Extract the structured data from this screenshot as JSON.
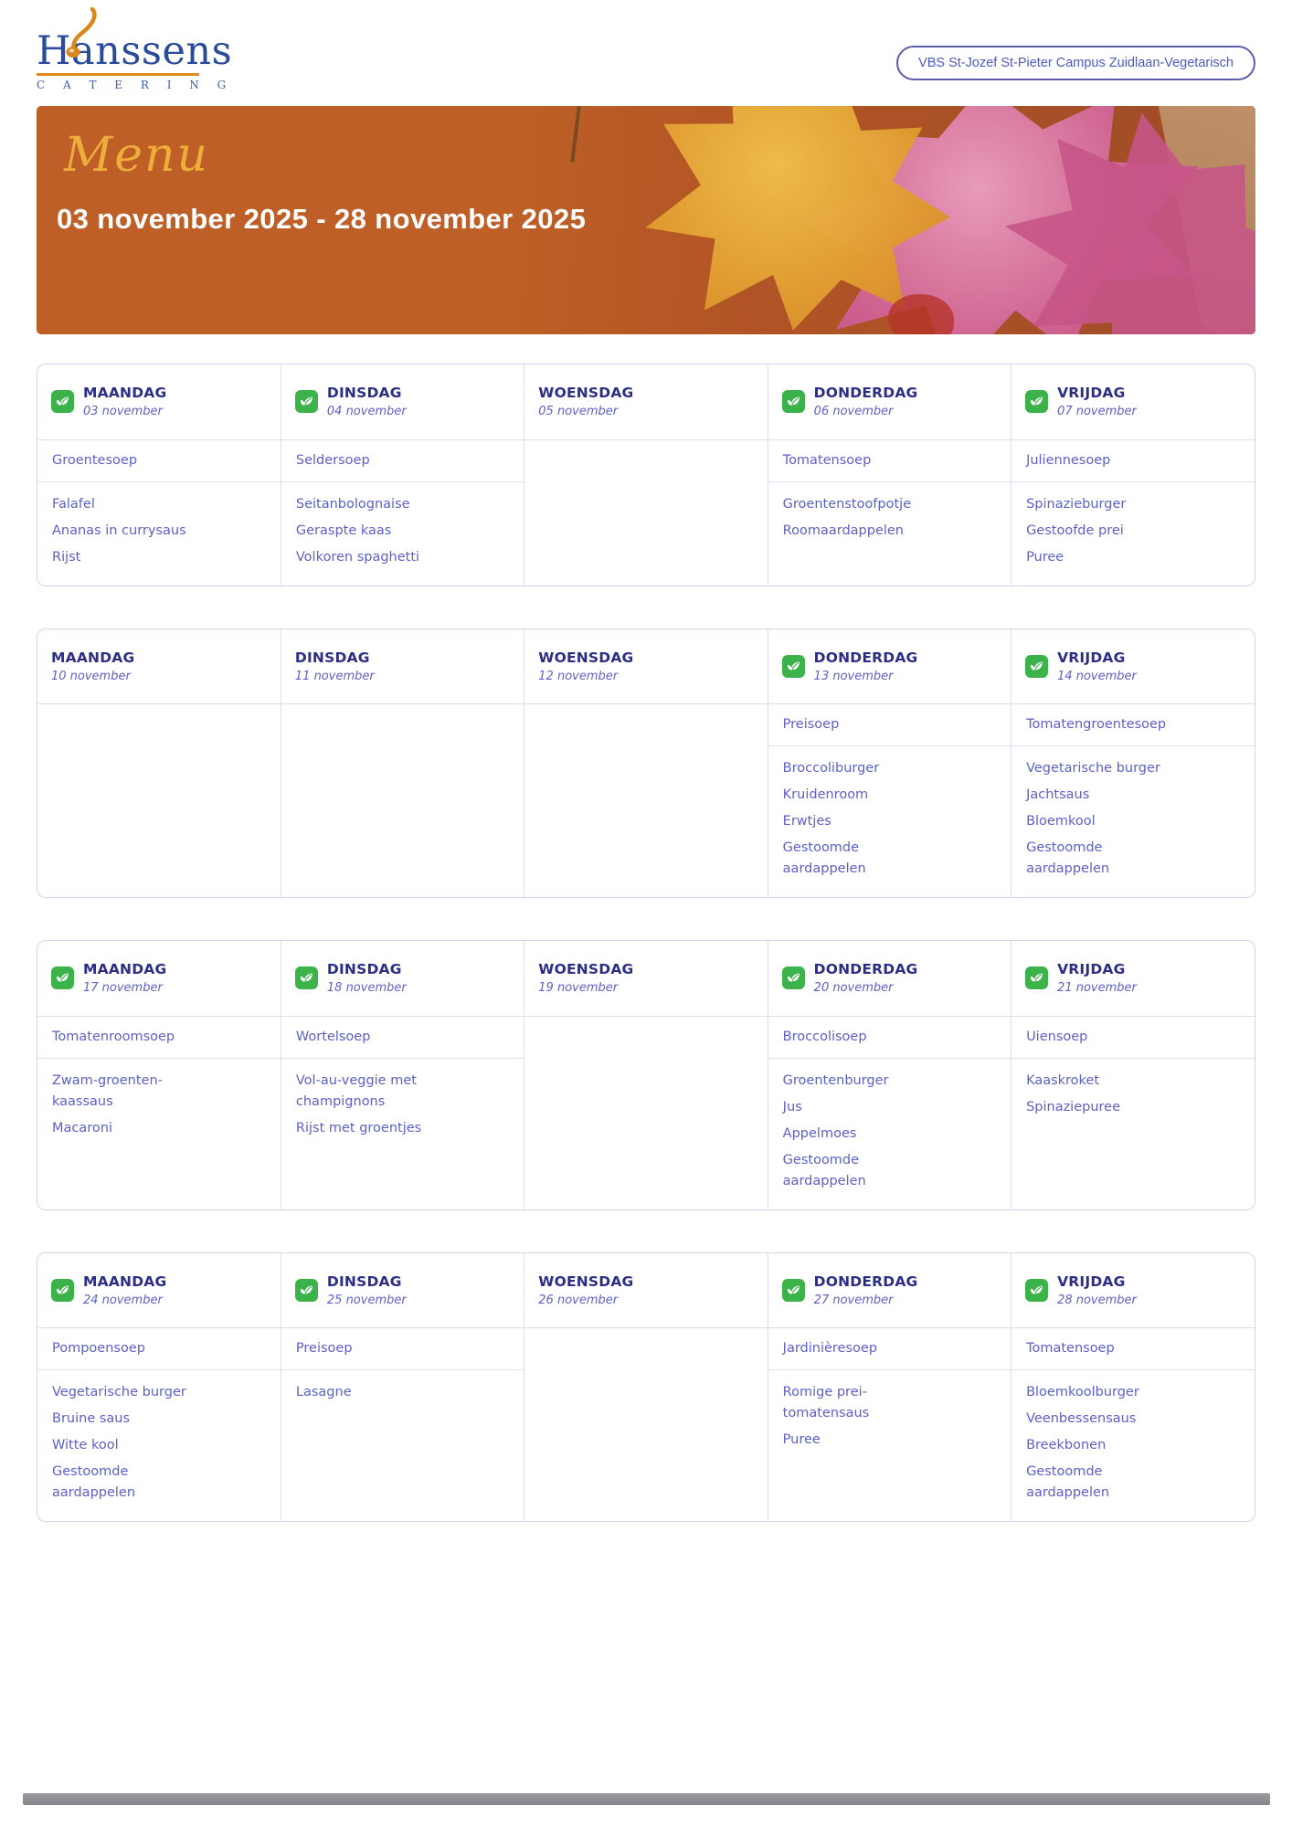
{
  "logo": {
    "name": "Hanssens",
    "subtitle": "C A T E R I N G"
  },
  "header": {
    "badge": "VBS St-Jozef St-Pieter Campus Zuidlaan-Vegetarisch"
  },
  "banner": {
    "title": "Menu",
    "date_range": "03 november 2025 - 28 november 2025"
  },
  "icons": {
    "veg_badge": "leaf-icon",
    "logo_mark": "spoon-icon"
  },
  "colors": {
    "banner_orange": "#bd5f26",
    "accent_gold": "#eeac3a",
    "day_heading": "#2c2e85",
    "menu_text": "#5c61c6",
    "veg_green": "#3cb34a",
    "logo_blue": "#2a4a9c",
    "logo_orange": "#d9871b",
    "pill_purple": "#5d5dab",
    "border_lavender": "#dfdcf1"
  },
  "weeks": [
    {
      "days": [
        {
          "name": "MAANDAG",
          "date": "03 november",
          "veg": true,
          "soup": "Groentesoep",
          "mains": [
            "Falafel",
            "Ananas in currysaus",
            "Rijst"
          ]
        },
        {
          "name": "DINSDAG",
          "date": "04 november",
          "veg": true,
          "soup": "Seldersoep",
          "mains": [
            "Seitanbolognaise",
            "Geraspte kaas",
            "Volkoren spaghetti"
          ]
        },
        {
          "name": "WOENSDAG",
          "date": "05 november",
          "veg": false,
          "soup": "",
          "mains": []
        },
        {
          "name": "DONDERDAG",
          "date": "06 november",
          "veg": true,
          "soup": "Tomatensoep",
          "mains": [
            "Groentenstoofpotje",
            "Roomaardappelen"
          ]
        },
        {
          "name": "VRIJDAG",
          "date": "07 november",
          "veg": true,
          "soup": "Juliennesoep",
          "mains": [
            "Spinazieburger",
            "Gestoofde prei",
            "Puree"
          ]
        }
      ]
    },
    {
      "days": [
        {
          "name": "MAANDAG",
          "date": "10 november",
          "veg": false,
          "soup": "",
          "mains": []
        },
        {
          "name": "DINSDAG",
          "date": "11 november",
          "veg": false,
          "soup": "",
          "mains": []
        },
        {
          "name": "WOENSDAG",
          "date": "12 november",
          "veg": false,
          "soup": "",
          "mains": []
        },
        {
          "name": "DONDERDAG",
          "date": "13 november",
          "veg": true,
          "soup": "Preisoep",
          "mains": [
            "Broccoliburger",
            "Kruidenroom",
            "Erwtjes",
            "Gestoomde aardappelen"
          ]
        },
        {
          "name": "VRIJDAG",
          "date": "14 november",
          "veg": true,
          "soup": "Tomatengroentesoep",
          "mains": [
            "Vegetarische burger",
            "Jachtsaus",
            "Bloemkool",
            "Gestoomde aardappelen"
          ]
        }
      ]
    },
    {
      "days": [
        {
          "name": "MAANDAG",
          "date": "17 november",
          "veg": true,
          "soup": "Tomatenroomsoep",
          "mains": [
            "Zwam-groenten-kaassaus",
            "Macaroni"
          ]
        },
        {
          "name": "DINSDAG",
          "date": "18 november",
          "veg": true,
          "soup": "Wortelsoep",
          "mains": [
            "Vol-au-veggie met champignons",
            "Rijst met groentjes"
          ]
        },
        {
          "name": "WOENSDAG",
          "date": "19 november",
          "veg": false,
          "soup": "",
          "mains": []
        },
        {
          "name": "DONDERDAG",
          "date": "20 november",
          "veg": true,
          "soup": "Broccolisoep",
          "mains": [
            "Groentenburger",
            "Jus",
            "Appelmoes",
            "Gestoomde aardappelen"
          ]
        },
        {
          "name": "VRIJDAG",
          "date": "21 november",
          "veg": true,
          "soup": "Uiensoep",
          "mains": [
            "Kaaskroket",
            "Spinaziepuree"
          ]
        }
      ]
    },
    {
      "days": [
        {
          "name": "MAANDAG",
          "date": "24 november",
          "veg": true,
          "soup": "Pompoensoep",
          "mains": [
            "Vegetarische burger",
            "Bruine saus",
            "Witte kool",
            "Gestoomde aardappelen"
          ]
        },
        {
          "name": "DINSDAG",
          "date": "25 november",
          "veg": true,
          "soup": "Preisoep",
          "mains": [
            "Lasagne"
          ]
        },
        {
          "name": "WOENSDAG",
          "date": "26 november",
          "veg": false,
          "soup": "",
          "mains": []
        },
        {
          "name": "DONDERDAG",
          "date": "27 november",
          "veg": true,
          "soup": "Jardinièresoep",
          "mains": [
            "Romige prei-tomatensaus",
            "Puree"
          ]
        },
        {
          "name": "VRIJDAG",
          "date": "28 november",
          "veg": true,
          "soup": "Tomatensoep",
          "mains": [
            "Bloemkoolburger",
            "Veenbessensaus",
            "Breekbonen",
            "Gestoomde aardappelen"
          ]
        }
      ]
    }
  ]
}
